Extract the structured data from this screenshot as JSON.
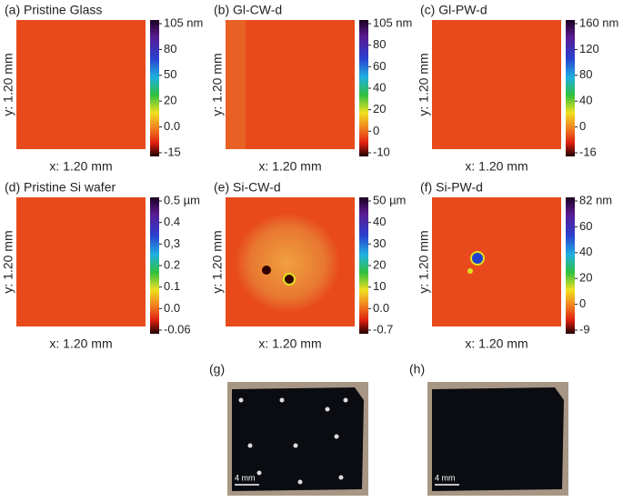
{
  "panels": [
    {
      "label": "(a) Pristine Glass",
      "y_axis": "y: 1.20 mm",
      "x_axis": "x: 1.20 mm",
      "colorbar": [
        "105 nm",
        "80",
        "50",
        "20",
        "0.0",
        "-15"
      ]
    },
    {
      "label": "(b) Gl-CW-d",
      "y_axis": "y: 1.20 mm",
      "x_axis": "x: 1.20 mm",
      "colorbar": [
        "105 nm",
        "80",
        "60",
        "40",
        "20",
        "0",
        "-10"
      ]
    },
    {
      "label": "(c) Gl-PW-d",
      "y_axis": "y: 1.20 mm",
      "x_axis": "x: 1.20 mm",
      "colorbar": [
        "160 nm",
        "120",
        "80",
        "40",
        "0",
        "-16"
      ]
    },
    {
      "label": "(d) Pristine Si wafer",
      "y_axis": "y: 1.20 mm",
      "x_axis": "x: 1.20 mm",
      "colorbar": [
        "0.5 µm",
        "0.4",
        "0,3",
        "0.2",
        "0.1",
        "0.0",
        "-0.06"
      ]
    },
    {
      "label": "(e) Si-CW-d",
      "y_axis": "y: 1.20 mm",
      "x_axis": "x: 1.20 mm",
      "colorbar": [
        "50 µm",
        "40",
        "30",
        "20",
        "10",
        "0.0",
        "-0.7"
      ]
    },
    {
      "label": "(f) Si-PW-d",
      "y_axis": "y: 1.20 mm",
      "x_axis": "x: 1.20 mm",
      "colorbar": [
        "82 nm",
        "60",
        "40",
        "20",
        "0",
        "-9"
      ]
    }
  ],
  "photos": [
    {
      "label": "(g)",
      "scale": "4 mm"
    },
    {
      "label": "(h)",
      "scale": "4 mm"
    }
  ]
}
